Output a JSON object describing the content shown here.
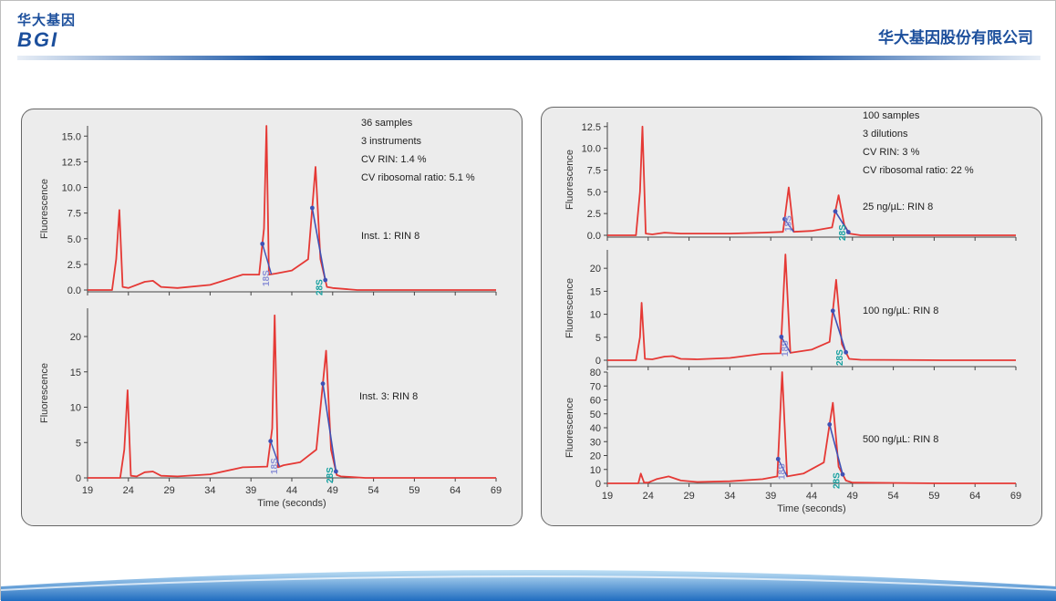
{
  "header": {
    "logo_cn": "华大基因",
    "logo_en": "BGI",
    "company": "华大基因股份有限公司"
  },
  "colors": {
    "trace": "#e53935",
    "marker": "#3f51b5",
    "label_18s": "#8a8fd6",
    "label_28s": "#16a0a0",
    "brand": "#1c4f9c"
  },
  "chart_data": [
    {
      "id": "left-top",
      "type": "line",
      "ylabel": "Fluorescence",
      "ylim": [
        0,
        16
      ],
      "yticks": [
        "0.0",
        "2.5",
        "5.0",
        "7.5",
        "10.0",
        "12.5",
        "15.0"
      ],
      "annotations": [
        "36 samples",
        "3 instruments",
        "CV RIN: 1.4 %",
        "CV ribosomal ratio: 5.1 %"
      ],
      "note": "Inst. 1: RIN 8",
      "peaks": {
        "18S": 40.9,
        "28S": 46.9
      },
      "series": [
        {
          "x": [
            19,
            22,
            22.5,
            22.9,
            23.3,
            24,
            26,
            27,
            28,
            30,
            34,
            38,
            40,
            40.6,
            40.9,
            41.2,
            42,
            44,
            46,
            46.9,
            47.5,
            48.3,
            49,
            52,
            60,
            69
          ],
          "y": [
            0,
            0,
            3,
            7.8,
            0.3,
            0.2,
            0.8,
            0.9,
            0.3,
            0.2,
            0.5,
            1.5,
            1.5,
            6,
            16,
            1.5,
            1.6,
            1.9,
            3,
            12,
            3,
            0.3,
            0.2,
            0,
            0,
            0
          ]
        }
      ]
    },
    {
      "id": "left-bottom",
      "type": "line",
      "ylabel": "Fluorescence",
      "xlabel": "Time (seconds)",
      "ylim": [
        0,
        24
      ],
      "yticks": [
        "0",
        "5",
        "10",
        "15",
        "20"
      ],
      "xticks": [
        "19",
        "24",
        "29",
        "34",
        "39",
        "44",
        "49",
        "54",
        "59",
        "64",
        "69"
      ],
      "note": "Inst. 3: RIN 8",
      "peaks": {
        "18S": 41.9,
        "28S": 48.2
      },
      "series": [
        {
          "x": [
            19,
            23,
            23.5,
            23.9,
            24.3,
            25,
            26,
            27,
            28,
            30,
            34,
            38,
            41,
            41.6,
            41.9,
            42.3,
            43,
            45,
            47,
            48.2,
            48.8,
            49.5,
            50,
            53,
            60,
            69
          ],
          "y": [
            0,
            0,
            4,
            12.4,
            0.3,
            0.2,
            0.8,
            0.9,
            0.3,
            0.2,
            0.5,
            1.5,
            1.6,
            7,
            23,
            1.5,
            1.8,
            2.2,
            4,
            18,
            4,
            0.4,
            0.2,
            0,
            0,
            0
          ]
        }
      ]
    },
    {
      "id": "right-1",
      "type": "line",
      "ylabel": "Fluorescence",
      "ylim": [
        0,
        13
      ],
      "yticks": [
        "0.0",
        "2.5",
        "5.0",
        "7.5",
        "10.0",
        "12.5"
      ],
      "annotations": [
        "100 samples",
        "3 dilutions",
        "CV RIN: 3 %",
        "CV ribosomal ratio: 22 %"
      ],
      "note": "25 ng/µL: RIN 8",
      "peaks": {
        "18S": 41.2,
        "28S": 47.3
      },
      "series": [
        {
          "x": [
            19,
            22.5,
            23,
            23.3,
            23.7,
            24.5,
            26,
            28,
            30,
            34,
            38,
            40.5,
            41.2,
            41.8,
            44,
            46.5,
            47.3,
            48,
            48.6,
            50,
            60,
            69
          ],
          "y": [
            0,
            0,
            5,
            12.5,
            0.2,
            0.1,
            0.3,
            0.2,
            0.2,
            0.2,
            0.3,
            0.4,
            5.5,
            0.4,
            0.5,
            0.9,
            4.6,
            1.2,
            0.2,
            0,
            0,
            0
          ]
        }
      ]
    },
    {
      "id": "right-2",
      "type": "line",
      "ylabel": "Fluorescence",
      "ylim": [
        0,
        24
      ],
      "yticks": [
        "0",
        "5",
        "10",
        "15",
        "20"
      ],
      "note": "100 ng/µL: RIN 8",
      "peaks": {
        "18S": 40.8,
        "28S": 47.0
      },
      "series": [
        {
          "x": [
            19,
            22.5,
            23,
            23.2,
            23.6,
            24.5,
            26,
            27,
            28,
            30,
            34,
            38,
            40.2,
            40.8,
            41.4,
            44,
            46.2,
            47,
            47.7,
            48.6,
            50,
            60,
            69
          ],
          "y": [
            0,
            0,
            5,
            12.5,
            0.3,
            0.2,
            0.8,
            0.9,
            0.3,
            0.2,
            0.5,
            1.4,
            1.5,
            23,
            1.6,
            2.3,
            4,
            17.5,
            3.5,
            0.3,
            0.1,
            0,
            0
          ]
        }
      ]
    },
    {
      "id": "right-3",
      "type": "line",
      "ylabel": "Fluorescence",
      "xlabel": "Time (seconds)",
      "ylim": [
        0,
        80
      ],
      "yticks": [
        "0",
        "10",
        "20",
        "30",
        "40",
        "50",
        "60",
        "70",
        "80"
      ],
      "xticks": [
        "19",
        "24",
        "29",
        "34",
        "39",
        "44",
        "49",
        "54",
        "59",
        "64",
        "69"
      ],
      "note": "500 ng/µL: RIN 8",
      "peaks": {
        "18S": 40.4,
        "28S": 46.6
      },
      "series": [
        {
          "x": [
            19,
            22.8,
            23.1,
            23.5,
            24,
            25,
            26.5,
            28,
            30,
            34,
            38,
            39.8,
            40.4,
            41,
            43,
            45.5,
            46.6,
            47.3,
            48.2,
            49,
            60,
            69
          ],
          "y": [
            0,
            0,
            7,
            0.5,
            0.5,
            3,
            5,
            2,
            1,
            1.5,
            3,
            5,
            80,
            5,
            7,
            15,
            58,
            12,
            2,
            0.5,
            0,
            0
          ]
        }
      ]
    }
  ]
}
